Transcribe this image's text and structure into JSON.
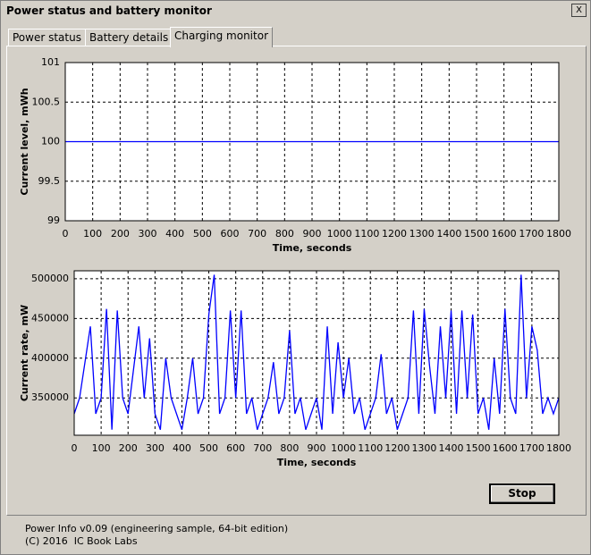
{
  "window": {
    "title": "Power status and battery monitor",
    "close": "X"
  },
  "tabs": [
    "Power status",
    "Battery details",
    "Charging monitor"
  ],
  "chart_data": [
    {
      "type": "line",
      "x_label": "Time, seconds",
      "y_label": "Current level, mWh",
      "x": [
        0,
        1800
      ],
      "series": [
        {
          "color": "#0000ff",
          "values": [
            100,
            100
          ]
        }
      ],
      "xlim": [
        0,
        1800
      ],
      "ylim": [
        99,
        101
      ],
      "xticks": [
        0,
        100,
        200,
        300,
        400,
        500,
        600,
        700,
        800,
        900,
        1000,
        1100,
        1200,
        1300,
        1400,
        1500,
        1600,
        1700,
        1800
      ],
      "yticks": [
        99,
        99.5,
        100,
        100.5,
        101
      ],
      "grid": true
    },
    {
      "type": "line",
      "x_label": "Time, seconds",
      "y_label": "Current rate, mW",
      "x": [
        0,
        20,
        40,
        60,
        80,
        100,
        120,
        140,
        160,
        180,
        200,
        220,
        240,
        260,
        280,
        300,
        320,
        340,
        360,
        380,
        400,
        420,
        440,
        460,
        480,
        500,
        520,
        540,
        560,
        580,
        600,
        620,
        640,
        660,
        680,
        700,
        720,
        740,
        760,
        780,
        800,
        820,
        840,
        860,
        880,
        900,
        920,
        940,
        960,
        980,
        1000,
        1020,
        1040,
        1060,
        1080,
        1100,
        1120,
        1140,
        1160,
        1180,
        1200,
        1220,
        1240,
        1260,
        1280,
        1300,
        1320,
        1340,
        1360,
        1380,
        1400,
        1420,
        1440,
        1460,
        1480,
        1500,
        1520,
        1540,
        1560,
        1580,
        1600,
        1620,
        1640,
        1660,
        1680,
        1700,
        1720,
        1740,
        1760,
        1780,
        1800
      ],
      "series": [
        {
          "color": "#0000ff",
          "values": [
            330000,
            350000,
            395000,
            440000,
            330000,
            350000,
            462000,
            310000,
            460000,
            350000,
            330000,
            385000,
            440000,
            350000,
            425000,
            330000,
            310000,
            400000,
            350000,
            330000,
            310000,
            350000,
            400000,
            330000,
            350000,
            455000,
            505000,
            330000,
            350000,
            460000,
            350000,
            460000,
            330000,
            350000,
            310000,
            330000,
            350000,
            395000,
            330000,
            350000,
            435000,
            330000,
            350000,
            310000,
            330000,
            350000,
            310000,
            440000,
            330000,
            420000,
            350000,
            400000,
            330000,
            350000,
            310000,
            330000,
            350000,
            405000,
            330000,
            350000,
            310000,
            330000,
            350000,
            460000,
            330000,
            462000,
            390000,
            330000,
            440000,
            350000,
            460000,
            330000,
            460000,
            350000,
            455000,
            330000,
            350000,
            310000,
            400000,
            330000,
            462000,
            350000,
            330000,
            505000,
            350000,
            440000,
            410000,
            330000,
            350000,
            330000,
            350000
          ]
        }
      ],
      "xlim": [
        0,
        1800
      ],
      "ylim": [
        303000,
        510000
      ],
      "xticks": [
        0,
        100,
        200,
        300,
        400,
        500,
        600,
        700,
        800,
        900,
        1000,
        1100,
        1200,
        1300,
        1400,
        1500,
        1600,
        1700,
        1800
      ],
      "yticks": [
        350000,
        400000,
        450000,
        500000
      ],
      "grid": true
    }
  ],
  "button": "Stop",
  "footer": [
    "Power Info v0.09 (engineering sample, 64-bit edition)",
    "(C) 2016  IC Book Labs"
  ]
}
